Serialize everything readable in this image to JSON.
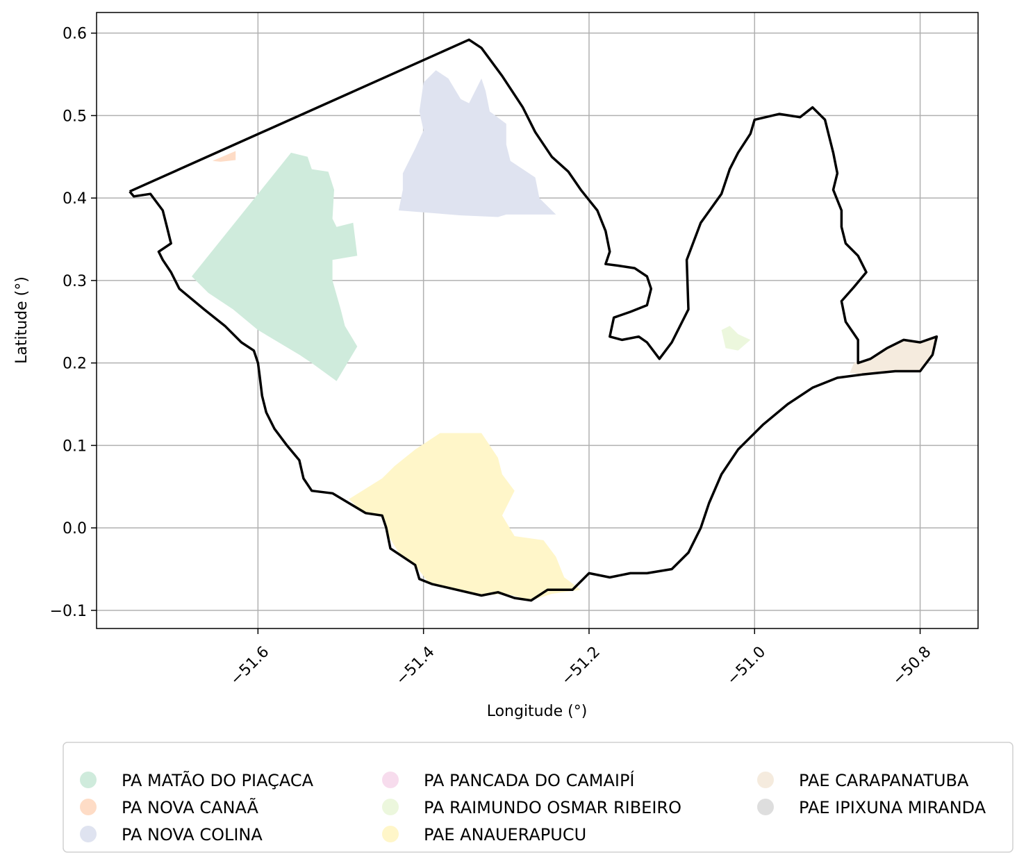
{
  "chart_data": {
    "type": "map",
    "xlabel": "Longitude (°)",
    "ylabel": "Latitude (°)",
    "xlim": [
      -51.795,
      -50.73
    ],
    "ylim": [
      -0.122,
      0.625
    ],
    "xticks": [
      -51.6,
      -51.4,
      -51.2,
      -51.0,
      -50.8
    ],
    "xtick_labels": [
      "−51.6",
      "−51.4",
      "−51.2",
      "−51.0",
      "−50.8"
    ],
    "yticks": [
      0.6,
      0.5,
      0.4,
      0.3,
      0.2,
      0.1,
      0.0,
      -0.1
    ],
    "ytick_labels": [
      "0.6",
      "0.5",
      "0.4",
      "0.3",
      "0.2",
      "0.1",
      "0.0",
      "−0.1"
    ],
    "grid": true,
    "legend_position": "bottom",
    "outline": {
      "color": "#000000",
      "coords": [
        [
          -51.755,
          0.408
        ],
        [
          -51.345,
          0.592
        ],
        [
          -51.33,
          0.582
        ],
        [
          -51.305,
          0.548
        ],
        [
          -51.28,
          0.51
        ],
        [
          -51.265,
          0.48
        ],
        [
          -51.245,
          0.45
        ],
        [
          -51.225,
          0.432
        ],
        [
          -51.21,
          0.41
        ],
        [
          -51.19,
          0.385
        ],
        [
          -51.18,
          0.36
        ],
        [
          -51.175,
          0.335
        ],
        [
          -51.18,
          0.32
        ],
        [
          -51.165,
          0.318
        ],
        [
          -51.145,
          0.315
        ],
        [
          -51.13,
          0.305
        ],
        [
          -51.125,
          0.29
        ],
        [
          -51.13,
          0.27
        ],
        [
          -51.15,
          0.262
        ],
        [
          -51.17,
          0.255
        ],
        [
          -51.175,
          0.232
        ],
        [
          -51.16,
          0.228
        ],
        [
          -51.14,
          0.232
        ],
        [
          -51.13,
          0.225
        ],
        [
          -51.115,
          0.205
        ],
        [
          -51.1,
          0.225
        ],
        [
          -51.08,
          0.265
        ],
        [
          -51.082,
          0.325
        ],
        [
          -51.065,
          0.37
        ],
        [
          -51.04,
          0.405
        ],
        [
          -51.03,
          0.435
        ],
        [
          -51.02,
          0.455
        ],
        [
          -51.005,
          0.478
        ],
        [
          -51.0,
          0.495
        ],
        [
          -50.97,
          0.502
        ],
        [
          -50.945,
          0.498
        ],
        [
          -50.93,
          0.51
        ],
        [
          -50.915,
          0.495
        ],
        [
          -50.91,
          0.475
        ],
        [
          -50.905,
          0.455
        ],
        [
          -50.9,
          0.43
        ],
        [
          -50.905,
          0.41
        ],
        [
          -50.895,
          0.385
        ],
        [
          -50.895,
          0.365
        ],
        [
          -50.89,
          0.345
        ],
        [
          -50.875,
          0.33
        ],
        [
          -50.865,
          0.31
        ],
        [
          -50.88,
          0.292
        ],
        [
          -50.895,
          0.275
        ],
        [
          -50.89,
          0.25
        ],
        [
          -50.875,
          0.228
        ],
        [
          -50.875,
          0.2
        ],
        [
          -50.86,
          0.205
        ],
        [
          -50.84,
          0.218
        ],
        [
          -50.82,
          0.228
        ],
        [
          -50.8,
          0.225
        ],
        [
          -50.78,
          0.232
        ],
        [
          -50.785,
          0.21
        ],
        [
          -50.8,
          0.19
        ],
        [
          -50.83,
          0.19
        ],
        [
          -50.87,
          0.186
        ],
        [
          -50.9,
          0.182
        ],
        [
          -50.93,
          0.17
        ],
        [
          -50.96,
          0.15
        ],
        [
          -50.99,
          0.125
        ],
        [
          -51.02,
          0.095
        ],
        [
          -51.04,
          0.065
        ],
        [
          -51.055,
          0.03
        ],
        [
          -51.065,
          0.0
        ],
        [
          -51.08,
          -0.03
        ],
        [
          -51.1,
          -0.05
        ],
        [
          -51.13,
          -0.055
        ],
        [
          -51.15,
          -0.055
        ],
        [
          -51.175,
          -0.06
        ],
        [
          -51.2,
          -0.055
        ],
        [
          -51.22,
          -0.075
        ],
        [
          -51.25,
          -0.075
        ],
        [
          -51.27,
          -0.088
        ],
        [
          -51.29,
          -0.085
        ],
        [
          -51.31,
          -0.078
        ],
        [
          -51.33,
          -0.082
        ],
        [
          -51.36,
          -0.075
        ],
        [
          -51.39,
          -0.068
        ],
        [
          -51.405,
          -0.062
        ],
        [
          -51.41,
          -0.045
        ],
        [
          -51.425,
          -0.035
        ],
        [
          -51.44,
          -0.025
        ],
        [
          -51.445,
          -0.0
        ],
        [
          -51.45,
          0.015
        ],
        [
          -51.47,
          0.018
        ],
        [
          -51.49,
          0.03
        ],
        [
          -51.51,
          0.042
        ],
        [
          -51.535,
          0.045
        ],
        [
          -51.545,
          0.06
        ],
        [
          -51.55,
          0.082
        ],
        [
          -51.565,
          0.1
        ],
        [
          -51.58,
          0.12
        ],
        [
          -51.59,
          0.14
        ],
        [
          -51.595,
          0.16
        ],
        [
          -51.598,
          0.185
        ],
        [
          -51.6,
          0.2
        ],
        [
          -51.605,
          0.215
        ],
        [
          -51.62,
          0.225
        ],
        [
          -51.64,
          0.245
        ],
        [
          -51.665,
          0.265
        ],
        [
          -51.695,
          0.29
        ],
        [
          -51.705,
          0.31
        ],
        [
          -51.715,
          0.325
        ],
        [
          -51.72,
          0.335
        ],
        [
          -51.705,
          0.345
        ],
        [
          -51.71,
          0.365
        ],
        [
          -51.715,
          0.385
        ],
        [
          -51.73,
          0.405
        ],
        [
          -51.75,
          0.402
        ],
        [
          -51.755,
          0.408
        ]
      ]
    },
    "regions": [
      {
        "name": "PA MATÃO DO PIAÇACA",
        "color": "#cfebdc",
        "coords": [
          [
            -51.68,
            0.305
          ],
          [
            -51.56,
            0.455
          ],
          [
            -51.54,
            0.45
          ],
          [
            -51.535,
            0.435
          ],
          [
            -51.515,
            0.432
          ],
          [
            -51.508,
            0.41
          ],
          [
            -51.51,
            0.375
          ],
          [
            -51.505,
            0.365
          ],
          [
            -51.485,
            0.37
          ],
          [
            -51.48,
            0.33
          ],
          [
            -51.51,
            0.325
          ],
          [
            -51.51,
            0.3
          ],
          [
            -51.5,
            0.265
          ],
          [
            -51.495,
            0.245
          ],
          [
            -51.48,
            0.22
          ],
          [
            -51.505,
            0.178
          ],
          [
            -51.535,
            0.2
          ],
          [
            -51.55,
            0.21
          ],
          [
            -51.575,
            0.225
          ],
          [
            -51.6,
            0.24
          ],
          [
            -51.63,
            0.265
          ],
          [
            -51.66,
            0.285
          ]
        ]
      },
      {
        "name": "PA NOVA CANAÃ",
        "color": "#fedcc6",
        "coords": [
          [
            -51.655,
            0.445
          ],
          [
            -51.627,
            0.457
          ],
          [
            -51.627,
            0.446
          ],
          [
            -51.645,
            0.444
          ]
        ]
      },
      {
        "name": "PA NOVA COLINA",
        "color": "#dfe3f0",
        "coords": [
          [
            -51.43,
            0.385
          ],
          [
            -51.425,
            0.41
          ],
          [
            -51.425,
            0.43
          ],
          [
            -51.41,
            0.46
          ],
          [
            -51.4,
            0.482
          ],
          [
            -51.405,
            0.505
          ],
          [
            -51.4,
            0.54
          ],
          [
            -51.385,
            0.555
          ],
          [
            -51.37,
            0.545
          ],
          [
            -51.355,
            0.52
          ],
          [
            -51.345,
            0.515
          ],
          [
            -51.33,
            0.545
          ],
          [
            -51.325,
            0.53
          ],
          [
            -51.32,
            0.505
          ],
          [
            -51.3,
            0.49
          ],
          [
            -51.3,
            0.465
          ],
          [
            -51.295,
            0.445
          ],
          [
            -51.265,
            0.425
          ],
          [
            -51.26,
            0.4
          ],
          [
            -51.24,
            0.38
          ],
          [
            -51.3,
            0.38
          ],
          [
            -51.31,
            0.377
          ],
          [
            -51.355,
            0.379
          ]
        ]
      },
      {
        "name": "PA RAIMUNDO OSMAR RIBEIRO",
        "color": "#ecf7dd",
        "coords": [
          [
            -51.04,
            0.24
          ],
          [
            -51.03,
            0.245
          ],
          [
            -51.02,
            0.235
          ],
          [
            -51.005,
            0.228
          ],
          [
            -51.02,
            0.215
          ],
          [
            -51.035,
            0.218
          ]
        ]
      },
      {
        "name": "PAE ANAUERAPUCU",
        "color": "#fff6c9",
        "coords": [
          [
            -51.49,
            0.035
          ],
          [
            -51.45,
            0.06
          ],
          [
            -51.435,
            0.075
          ],
          [
            -51.41,
            0.095
          ],
          [
            -51.38,
            0.115
          ],
          [
            -51.33,
            0.115
          ],
          [
            -51.32,
            0.1
          ],
          [
            -51.31,
            0.085
          ],
          [
            -51.305,
            0.065
          ],
          [
            -51.29,
            0.045
          ],
          [
            -51.305,
            0.015
          ],
          [
            -51.29,
            -0.01
          ],
          [
            -51.255,
            -0.015
          ],
          [
            -51.24,
            -0.035
          ],
          [
            -51.23,
            -0.06
          ],
          [
            -51.21,
            -0.075
          ],
          [
            -51.245,
            -0.08
          ],
          [
            -51.27,
            -0.088
          ],
          [
            -51.3,
            -0.08
          ],
          [
            -51.33,
            -0.082
          ],
          [
            -51.36,
            -0.075
          ],
          [
            -51.395,
            -0.065
          ],
          [
            -51.41,
            -0.045
          ],
          [
            -51.43,
            -0.03
          ],
          [
            -51.445,
            -0.005
          ],
          [
            -51.45,
            0.015
          ],
          [
            -51.475,
            0.02
          ]
        ]
      },
      {
        "name": "PAE CARAPANATUBA",
        "color": "#f5ebde",
        "coords": [
          [
            -50.88,
            0.2
          ],
          [
            -50.86,
            0.205
          ],
          [
            -50.84,
            0.218
          ],
          [
            -50.82,
            0.228
          ],
          [
            -50.8,
            0.225
          ],
          [
            -50.78,
            0.232
          ],
          [
            -50.785,
            0.21
          ],
          [
            -50.8,
            0.19
          ],
          [
            -50.83,
            0.19
          ],
          [
            -50.87,
            0.186
          ],
          [
            -50.885,
            0.188
          ]
        ]
      }
    ],
    "legend": [
      {
        "label": "PA MATÃO DO PIAÇACA",
        "color": "#cfebdc"
      },
      {
        "label": "PA NOVA CANAÃ",
        "color": "#fedcc6"
      },
      {
        "label": "PA NOVA COLINA",
        "color": "#dfe3f0"
      },
      {
        "label": "PA PANCADA DO CAMAIPÍ",
        "color": "#f7dced"
      },
      {
        "label": "PA RAIMUNDO OSMAR RIBEIRO",
        "color": "#ecf7dd"
      },
      {
        "label": "PAE ANAUERAPUCU",
        "color": "#fff6c9"
      },
      {
        "label": "PAE CARAPANATUBA",
        "color": "#f5ebde"
      },
      {
        "label": "PAE IPIXUNA MIRANDA",
        "color": "#dedede"
      }
    ]
  }
}
